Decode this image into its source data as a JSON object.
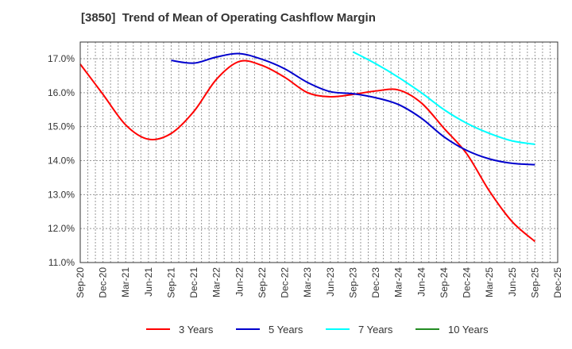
{
  "chart_data": {
    "type": "line",
    "title": "[3850]  Trend of Mean of Operating Cashflow Margin",
    "xlabel": "",
    "ylabel": "",
    "ylim": [
      11.0,
      17.5
    ],
    "y_ticks": [
      "11.0%",
      "12.0%",
      "13.0%",
      "14.0%",
      "15.0%",
      "16.0%",
      "17.0%"
    ],
    "y_tick_values": [
      11,
      12,
      13,
      14,
      15,
      16,
      17
    ],
    "x_tick_labels": [
      "Sep-20",
      "Dec-20",
      "Mar-21",
      "Jun-21",
      "Sep-21",
      "Dec-21",
      "Mar-22",
      "Jun-22",
      "Sep-22",
      "Dec-22",
      "Mar-23",
      "Jun-23",
      "Sep-23",
      "Dec-23",
      "Mar-24",
      "Jun-24",
      "Sep-24",
      "Dec-24",
      "Mar-25",
      "Jun-25",
      "Sep-25",
      "Dec-25"
    ],
    "grid": true,
    "legend_position": "bottom",
    "series": [
      {
        "name": "3 Years",
        "color": "#ff0000",
        "x": [
          "Sep-20",
          "Dec-20",
          "Mar-21",
          "Jun-21",
          "Sep-21",
          "Dec-21",
          "Mar-22",
          "Jun-22",
          "Sep-22",
          "Dec-22",
          "Mar-23",
          "Jun-23",
          "Sep-23",
          "Dec-23",
          "Mar-24",
          "Jun-24",
          "Sep-24",
          "Dec-24",
          "Mar-25",
          "Jun-25",
          "Sep-25"
        ],
        "values": [
          16.84,
          15.95,
          15.05,
          14.63,
          14.8,
          15.45,
          16.4,
          16.92,
          16.8,
          16.45,
          16.0,
          15.88,
          15.95,
          16.05,
          16.08,
          15.7,
          14.95,
          14.2,
          13.1,
          12.2,
          11.62
        ]
      },
      {
        "name": "5 Years",
        "color": "#0000cd",
        "x": [
          "Sep-21",
          "Dec-21",
          "Mar-22",
          "Jun-22",
          "Sep-22",
          "Dec-22",
          "Mar-23",
          "Jun-23",
          "Sep-23",
          "Dec-23",
          "Mar-24",
          "Jun-24",
          "Sep-24",
          "Dec-24",
          "Mar-25",
          "Jun-25",
          "Sep-25"
        ],
        "values": [
          16.95,
          16.87,
          17.05,
          17.15,
          16.98,
          16.7,
          16.3,
          16.03,
          15.97,
          15.85,
          15.65,
          15.25,
          14.7,
          14.3,
          14.05,
          13.92,
          13.88
        ]
      },
      {
        "name": "7 Years",
        "color": "#00ffff",
        "x": [
          "Sep-23",
          "Dec-23",
          "Mar-24",
          "Jun-24",
          "Sep-24",
          "Dec-24",
          "Mar-25",
          "Jun-25",
          "Sep-25"
        ],
        "values": [
          17.2,
          16.85,
          16.45,
          16.0,
          15.5,
          15.1,
          14.8,
          14.58,
          14.48
        ]
      },
      {
        "name": "10 Years",
        "color": "#228b22",
        "x": [],
        "values": []
      }
    ]
  }
}
